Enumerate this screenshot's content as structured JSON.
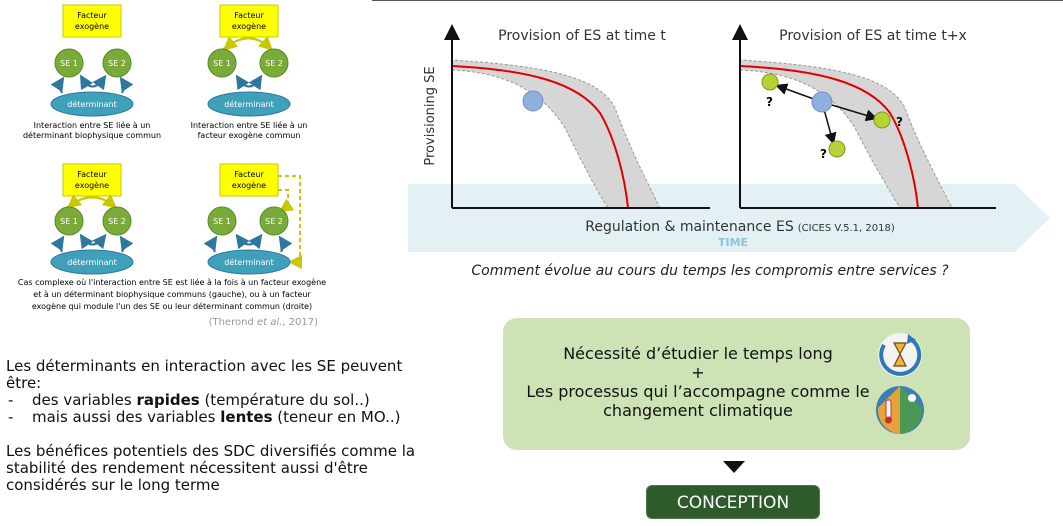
{
  "left_diagrams": {
    "factor_label_line1": "Facteur",
    "factor_label_line2": "exogène",
    "se1": "SE 1",
    "se2": "SE 2",
    "determinant": "déterminant",
    "caption_top_left_line1": "Interaction entre SE liée à un",
    "caption_top_left_line2": "déterminant biophysique commun",
    "caption_top_right_line1": "Interaction entre SE liée à un",
    "caption_top_right_line2": "facteur exogène commun",
    "caption_bottom_line1": "Cas complexe où l'interaction entre SE est liée à la fois à un facteur exogène",
    "caption_bottom_line2": "et à un déterminant biophysique communs (gauche), ou à un facteur",
    "caption_bottom_line3": "exogène qui module l'un des SE ou leur déterminant commun (droite)",
    "citation_prefix": "(Therond ",
    "citation_italic": "et al.",
    "citation_suffix": ", 2017)"
  },
  "graphs": {
    "title_left": "Provision of ES at time t",
    "title_right": "Provision of ES at time t+x",
    "y_axis_label": "Provisioning SE",
    "x_axis_label": "Regulation & maintenance ES",
    "x_axis_note": "(CICES V.5.1, 2018)",
    "time_label": "TIME",
    "question_mark": "?",
    "caption": "Comment évolue au cours du temps les compromis entre services ?"
  },
  "bottom_text": {
    "intro": "Les déterminants en interaction avec les SE peuvent être:",
    "item1_prefix": "des variables ",
    "item1_bold": "rapides",
    "item1_suffix": " (température du sol..)",
    "item2_prefix": "mais aussi des variables ",
    "item2_bold": "lentes",
    "item2_suffix": " (teneur en MO..)",
    "paragraph2": "Les bénéfices potentiels des SDC diversifiés comme la stabilité des rendement nécessitent aussi d'être considérés sur le long terme"
  },
  "green_box": {
    "line1": "Nécessité d’étudier le temps long",
    "line2": "+",
    "line3": "Les processus qui l’accompagne comme le",
    "line4": "changement climatique"
  },
  "conception_label": "CONCEPTION",
  "icons": [
    "clock-cycle-icon",
    "climate-change-globe-icon"
  ],
  "colors": {
    "factor_fill": "#ffff00",
    "se_node": "#7aab3a",
    "determinant": "#3fa0ba",
    "frontier_curve": "#e00000",
    "band_fill": "#d6d6d6",
    "point_blue": "#8fb0df",
    "point_green": "#b5d334",
    "green_box": "#cde3b6",
    "conception_button": "#2e5a2c"
  }
}
